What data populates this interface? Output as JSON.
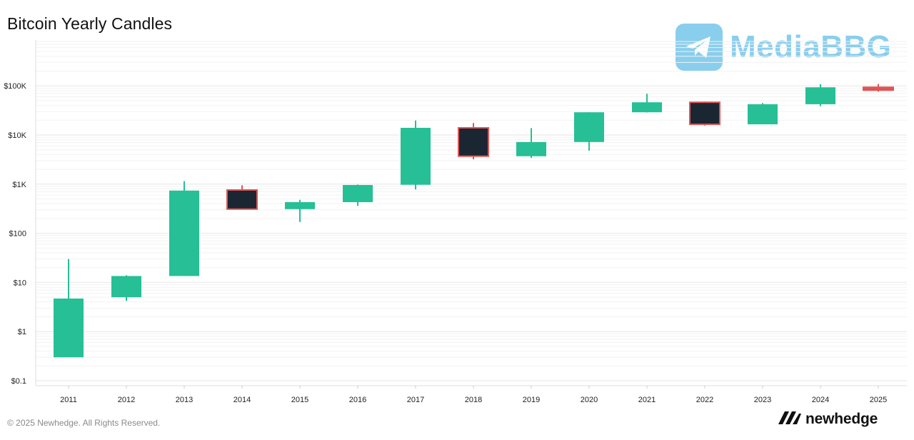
{
  "title": "Bitcoin Yearly Candles",
  "footer": {
    "copyright": "© 2025 Newhedge. All Rights Reserved.",
    "brand": "newhedge"
  },
  "watermark": {
    "text": "MediaBBG",
    "icon": "telegram-icon"
  },
  "colors": {
    "up": "#26bf96",
    "down_fill": "#1b2633",
    "down_stroke": "#e05555",
    "grid": "#e6e6e6",
    "axis_text": "#222222"
  },
  "chart_data": {
    "type": "candlestick",
    "title": "Bitcoin Yearly Candles",
    "y_scale": "log",
    "ylim": [
      0.1,
      500000
    ],
    "y_ticks": [
      {
        "value": 0.1,
        "label": "$0.1"
      },
      {
        "value": 1,
        "label": "$1"
      },
      {
        "value": 10,
        "label": "$10"
      },
      {
        "value": 100,
        "label": "$100"
      },
      {
        "value": 1000,
        "label": "$1K"
      },
      {
        "value": 10000,
        "label": "$10K"
      },
      {
        "value": 100000,
        "label": "$100K"
      }
    ],
    "grid": true,
    "candles": [
      {
        "year": "2011",
        "open": 0.3,
        "high": 30,
        "low": 0.3,
        "close": 4.7
      },
      {
        "year": "2012",
        "open": 5,
        "high": 14,
        "low": 4.2,
        "close": 13.5
      },
      {
        "year": "2013",
        "open": 13.5,
        "high": 1150,
        "low": 13.5,
        "close": 740
      },
      {
        "year": "2014",
        "open": 760,
        "high": 950,
        "low": 310,
        "close": 310
      },
      {
        "year": "2015",
        "open": 310,
        "high": 480,
        "low": 170,
        "close": 430
      },
      {
        "year": "2016",
        "open": 430,
        "high": 980,
        "low": 360,
        "close": 960
      },
      {
        "year": "2017",
        "open": 970,
        "high": 19700,
        "low": 780,
        "close": 14000
      },
      {
        "year": "2018",
        "open": 14000,
        "high": 17500,
        "low": 3200,
        "close": 3700
      },
      {
        "year": "2019",
        "open": 3700,
        "high": 13800,
        "low": 3400,
        "close": 7200
      },
      {
        "year": "2020",
        "open": 7200,
        "high": 29000,
        "low": 4800,
        "close": 29000
      },
      {
        "year": "2021",
        "open": 29000,
        "high": 69000,
        "low": 28800,
        "close": 46300
      },
      {
        "year": "2022",
        "open": 46300,
        "high": 48000,
        "low": 15500,
        "close": 16500
      },
      {
        "year": "2023",
        "open": 16500,
        "high": 44700,
        "low": 16500,
        "close": 42300
      },
      {
        "year": "2024",
        "open": 42300,
        "high": 108000,
        "low": 38500,
        "close": 93500
      },
      {
        "year": "2025",
        "open": 93500,
        "high": 109000,
        "low": 76000,
        "close": 84000
      }
    ]
  }
}
